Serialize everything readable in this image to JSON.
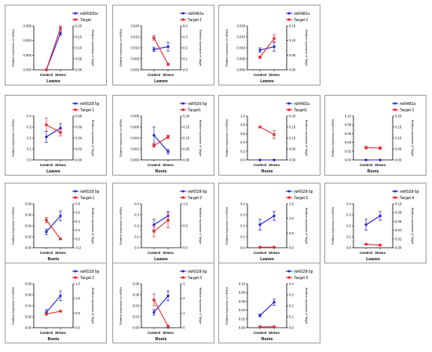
{
  "figure": {
    "colors": {
      "mirna": "#1f1fd6",
      "target": "#e8232a",
      "axis": "#000000"
    },
    "categories": [
      "Control",
      "Stress"
    ]
  },
  "chart_data": [
    {
      "type": "line",
      "row": 0,
      "col": 0,
      "xlabel": "Leaves",
      "ylabel": "Relative expression of miRNA",
      "ylabel2": "Relative expression of Target",
      "categories": [
        "Control",
        "Stress"
      ],
      "y_ticks": [
        "0.000",
        "0.002",
        "0.004",
        "0.006"
      ],
      "y2_ticks": [
        "0.00",
        "0.05",
        "0.10",
        "0.15",
        "0.20"
      ],
      "ylim": [
        0,
        0.0065
      ],
      "y2lim": [
        0,
        0.2
      ],
      "series": [
        {
          "name": "miR5305o",
          "axis": "left",
          "values": [
            0.0,
            0.0054
          ],
          "errors": [
            0,
            0.0003
          ],
          "color": "#1f1fd6"
        },
        {
          "name": "Target",
          "axis": "right",
          "values": [
            0.0,
            0.19
          ],
          "errors": [
            0,
            0.01
          ],
          "color": "#e8232a"
        }
      ]
    },
    {
      "type": "line",
      "row": 0,
      "col": 1,
      "xlabel": "Leaves",
      "ylabel": "Relative expression of miRNA",
      "ylabel2": "Relative expression of Target",
      "categories": [
        "Control",
        "Stress"
      ],
      "y_ticks": [
        "0.000",
        "0.005",
        "0.010",
        "0.015",
        "0.020"
      ],
      "y2_ticks": [
        "0.0",
        "0.1",
        "0.2",
        "0.3",
        "0.4"
      ],
      "ylim": [
        0,
        0.02
      ],
      "y2lim": [
        0,
        0.4
      ],
      "series": [
        {
          "name": "miR482a",
          "axis": "left",
          "values": [
            0.0093,
            0.0105
          ],
          "errors": [
            0.001,
            0.002
          ],
          "color": "#1f1fd6"
        },
        {
          "name": "Target 1",
          "axis": "right",
          "values": [
            0.29,
            0.05
          ],
          "errors": [
            0.02,
            0.01
          ],
          "color": "#e8232a"
        }
      ]
    },
    {
      "type": "line",
      "row": 0,
      "col": 2,
      "xlabel": "Leaves",
      "ylabel": "Relative expression of miRNA",
      "ylabel2": "Relative expression of Target",
      "categories": [
        "Control",
        "Stress"
      ],
      "y_ticks": [
        "0.000",
        "0.005",
        "0.010",
        "0.015",
        "0.020"
      ],
      "y2_ticks": [
        "0.00",
        "0.05",
        "0.10",
        "0.15"
      ],
      "ylim": [
        0,
        0.02
      ],
      "y2lim": [
        0,
        0.15
      ],
      "series": [
        {
          "name": "miR482a",
          "axis": "left",
          "values": [
            0.009,
            0.0105
          ],
          "errors": [
            0.001,
            0.002
          ],
          "color": "#1f1fd6"
        },
        {
          "name": "Target 2",
          "axis": "right",
          "values": [
            0.043,
            0.107
          ],
          "errors": [
            0.004,
            0.012
          ],
          "color": "#e8232a"
        }
      ]
    },
    {
      "type": "line",
      "row": 1,
      "col": 0,
      "xlabel": "Leaves",
      "ylabel": "Relative expression of miRNA",
      "ylabel2": "Relative expression of Target",
      "categories": [
        "Control",
        "Stress"
      ],
      "y_ticks": [
        "0.0",
        "0.1",
        "0.2",
        "0.3",
        "0.4"
      ],
      "y2_ticks": [
        "0.00",
        "0.02",
        "0.04",
        "0.06",
        "0.08"
      ],
      "ylim": [
        0,
        0.4
      ],
      "y2lim": [
        0,
        0.08
      ],
      "series": [
        {
          "name": "miR528-5p",
          "axis": "left",
          "values": [
            0.21,
            0.29
          ],
          "errors": [
            0.05,
            0.04
          ],
          "color": "#1f1fd6"
        },
        {
          "name": "Target 1",
          "axis": "right",
          "values": [
            0.064,
            0.05
          ],
          "errors": [
            0.012,
            0.006
          ],
          "color": "#e8232a"
        }
      ]
    },
    {
      "type": "line",
      "row": 1,
      "col": 1,
      "xlabel": "Roots",
      "ylabel": "Relative expression of miRNA",
      "ylabel2": "Relative expression of Target",
      "categories": [
        "Control",
        "Stress"
      ],
      "y_ticks": [
        "0.000",
        "0.002",
        "0.004",
        "0.006",
        "0.008"
      ],
      "y2_ticks": [
        "0.00",
        "0.05",
        "0.10",
        "0.15",
        "0.20"
      ],
      "ylim": [
        0,
        0.008
      ],
      "y2lim": [
        0,
        0.2
      ],
      "series": [
        {
          "name": "miR530-5p",
          "axis": "left",
          "values": [
            0.0045,
            0.0015
          ],
          "errors": [
            0.0015,
            0.0004
          ],
          "color": "#1f1fd6"
        },
        {
          "name": "Target1",
          "axis": "right",
          "values": [
            0.065,
            0.105
          ],
          "errors": [
            0.006,
            0.008
          ],
          "color": "#e8232a"
        }
      ]
    },
    {
      "type": "line",
      "row": 1,
      "col": 2,
      "xlabel": "Roots",
      "ylabel": "Relative expression of miRNA",
      "ylabel2": "Relative expression of Target",
      "categories": [
        "Control",
        "Stress"
      ],
      "y_ticks": [
        "0.0",
        "0.2",
        "0.4",
        "0.6",
        "0.8",
        "1.0"
      ],
      "y2_ticks": [
        "0.00",
        "0.05",
        "0.10",
        "0.15",
        "0.20"
      ],
      "ylim": [
        0,
        1.0
      ],
      "y2lim": [
        0,
        0.2
      ],
      "series": [
        {
          "name": "miR482a",
          "axis": "left",
          "values": [
            0.0,
            0.0
          ],
          "errors": [
            0,
            0
          ],
          "color": "#1f1fd6"
        },
        {
          "name": "Target1",
          "axis": "right",
          "values": [
            0.15,
            0.115
          ],
          "errors": [
            0.004,
            0.018
          ],
          "color": "#e8232a"
        }
      ]
    },
    {
      "type": "line",
      "row": 1,
      "col": 3,
      "xlabel": "Roots",
      "ylabel": "Relative expression of miRNA",
      "ylabel2": "Relative expression of Target",
      "categories": [
        "Control",
        "Stress"
      ],
      "y_ticks": [
        "0.00",
        "0.02",
        "0.04",
        "0.06",
        "0.08",
        "0.10"
      ],
      "y2_ticks": [
        "0.00",
        "0.05",
        "0.10",
        "0.15",
        "0.20"
      ],
      "ylim": [
        0,
        0.1
      ],
      "y2lim": [
        0,
        0.2
      ],
      "series": [
        {
          "name": "miR482a",
          "axis": "left",
          "values": [
            0.0,
            0.0
          ],
          "errors": [
            0,
            0
          ],
          "color": "#1f1fd6"
        },
        {
          "name": "Target 2",
          "axis": "right",
          "values": [
            0.056,
            0.054
          ],
          "errors": [
            0.006,
            0.006
          ],
          "color": "#e8232a"
        }
      ]
    },
    {
      "type": "line",
      "row": 2,
      "col": 0,
      "xlabel": "Roots",
      "ylabel": "Relative expression of miRNA",
      "ylabel2": "Relative expression of Target",
      "categories": [
        "Control",
        "Stress"
      ],
      "y_ticks": [
        "0.00",
        "0.02",
        "0.04",
        "0.06",
        "0.08"
      ],
      "y2_ticks": [
        "-0.2",
        "0.0",
        "0.2",
        "0.4",
        "0.6",
        "0.8"
      ],
      "ylim": [
        0,
        0.08
      ],
      "y2lim": [
        -0.2,
        0.8
      ],
      "series": [
        {
          "name": "miR528-5p",
          "axis": "left",
          "values": [
            0.029,
            0.058
          ],
          "errors": [
            0.005,
            0.009
          ],
          "color": "#1f1fd6"
        },
        {
          "name": "Target-1",
          "axis": "right",
          "values": [
            0.43,
            0.0
          ],
          "errors": [
            0.06,
            0.01
          ],
          "color": "#e8232a"
        }
      ]
    },
    {
      "type": "line",
      "row": 2,
      "col": 1,
      "xlabel": "Leaves",
      "ylabel": "Relative expression of miRNA",
      "ylabel2": "Relative expression of Target",
      "categories": [
        "Control",
        "Stress"
      ],
      "y_ticks": [
        "0.0",
        "0.1",
        "0.2",
        "0.3",
        "0.4"
      ],
      "y2_ticks": [
        "0.0",
        "0.5",
        "1.0"
      ],
      "ylim": [
        0,
        0.4
      ],
      "y2lim": [
        0,
        1.2
      ],
      "series": [
        {
          "name": "miR528-5p",
          "axis": "left",
          "values": [
            0.21,
            0.29
          ],
          "errors": [
            0.05,
            0.04
          ],
          "color": "#1f1fd6"
        },
        {
          "name": "Target 2",
          "axis": "right",
          "values": [
            0.45,
            0.75
          ],
          "errors": [
            0.15,
            0.2
          ],
          "color": "#e8232a"
        }
      ]
    },
    {
      "type": "line",
      "row": 2,
      "col": 2,
      "xlabel": "Leaves",
      "ylabel": "Relative expression of miRNA",
      "ylabel2": "Relative expression of Target",
      "categories": [
        "Control",
        "Stress"
      ],
      "y_ticks": [
        "0.0",
        "0.1",
        "0.2",
        "0.3",
        "0.4"
      ],
      "y2_ticks": [
        "0.0",
        "0.5",
        "1.0",
        "1.5"
      ],
      "ylim": [
        0,
        0.4
      ],
      "y2lim": [
        0,
        1.6
      ],
      "series": [
        {
          "name": "miR528-5p",
          "axis": "left",
          "values": [
            0.21,
            0.29
          ],
          "errors": [
            0.05,
            0.04
          ],
          "color": "#1f1fd6"
        },
        {
          "name": "Target 3",
          "axis": "right",
          "values": [
            0.02,
            0.02
          ],
          "errors": [
            0.005,
            0.005
          ],
          "color": "#e8232a"
        }
      ]
    },
    {
      "type": "line",
      "row": 2,
      "col": 3,
      "xlabel": "Leaves",
      "ylabel": "Relative expression of miRNA",
      "ylabel2": "Relative expression of Target",
      "categories": [
        "Control",
        "Stress"
      ],
      "y_ticks": [
        "0.0",
        "0.1",
        "0.2",
        "0.3",
        "0.4"
      ],
      "y2_ticks": [
        "0.00",
        "0.02",
        "0.04",
        "0.06",
        "0.08",
        "0.10"
      ],
      "ylim": [
        0,
        0.4
      ],
      "y2lim": [
        0,
        0.1
      ],
      "series": [
        {
          "name": "miR528-5p",
          "axis": "left",
          "values": [
            0.21,
            0.29
          ],
          "errors": [
            0.05,
            0.04
          ],
          "color": "#1f1fd6"
        },
        {
          "name": "Target 4",
          "axis": "right",
          "values": [
            0.008,
            0.006
          ],
          "errors": [
            0.001,
            0.001
          ],
          "color": "#e8232a"
        }
      ]
    },
    {
      "type": "line",
      "row": 3,
      "col": 0,
      "xlabel": "Roots",
      "ylabel": "Relative expression of miRNA",
      "ylabel2": "Relative expression of Target",
      "categories": [
        "Control",
        "Stress"
      ],
      "y_ticks": [
        "0.00",
        "0.02",
        "0.04",
        "0.06",
        "0.08"
      ],
      "y2_ticks": [
        "0.0",
        "0.5",
        "1.0",
        "1.5"
      ],
      "ylim": [
        0,
        0.08
      ],
      "y2lim": [
        0,
        1.6
      ],
      "series": [
        {
          "name": "miR528-5p",
          "axis": "left",
          "values": [
            0.028,
            0.058
          ],
          "errors": [
            0.005,
            0.009
          ],
          "color": "#1f1fd6"
        },
        {
          "name": "Target 2",
          "axis": "right",
          "values": [
            0.5,
            0.6
          ],
          "errors": [
            0.04,
            0.03
          ],
          "color": "#e8232a"
        }
      ]
    },
    {
      "type": "line",
      "row": 3,
      "col": 1,
      "xlabel": "Roots",
      "ylabel": "Relative expression of miRNA",
      "ylabel2": "Relative expression of Target",
      "categories": [
        "Control",
        "Stress"
      ],
      "y_ticks": [
        "0.00",
        "0.02",
        "0.04",
        "0.06",
        "0.08"
      ],
      "y2_ticks": [
        "0",
        "1",
        "2",
        "3"
      ],
      "ylim": [
        0,
        0.08
      ],
      "y2lim": [
        0,
        3
      ],
      "series": [
        {
          "name": "miR528-5p",
          "axis": "left",
          "values": [
            0.028,
            0.058
          ],
          "errors": [
            0.005,
            0.009
          ],
          "color": "#1f1fd6"
        },
        {
          "name": "Target 3",
          "axis": "right",
          "values": [
            1.9,
            0.1
          ],
          "errors": [
            0.4,
            0.05
          ],
          "color": "#e8232a"
        }
      ]
    },
    {
      "type": "line",
      "row": 3,
      "col": 2,
      "xlabel": "Roots",
      "ylabel": "Relative expression of miRNA",
      "ylabel2": "Relative expression of Target",
      "categories": [
        "Control",
        "Stress"
      ],
      "y_ticks": [
        "0.00",
        "0.02",
        "0.04",
        "0.06",
        "0.08",
        "0.10"
      ],
      "y2_ticks": [
        "0.0",
        "0.1",
        "0.2",
        "0.3",
        "0.4"
      ],
      "ylim": [
        0,
        0.1
      ],
      "y2lim": [
        0,
        0.4
      ],
      "series": [
        {
          "name": "miR528-5p",
          "axis": "left",
          "values": [
            0.028,
            0.058
          ],
          "errors": [
            0.003,
            0.007
          ],
          "color": "#1f1fd6"
        },
        {
          "name": "Target 4",
          "axis": "right",
          "values": [
            0.008,
            0.008
          ],
          "errors": [
            0.002,
            0.002
          ],
          "color": "#e8232a"
        }
      ]
    }
  ]
}
